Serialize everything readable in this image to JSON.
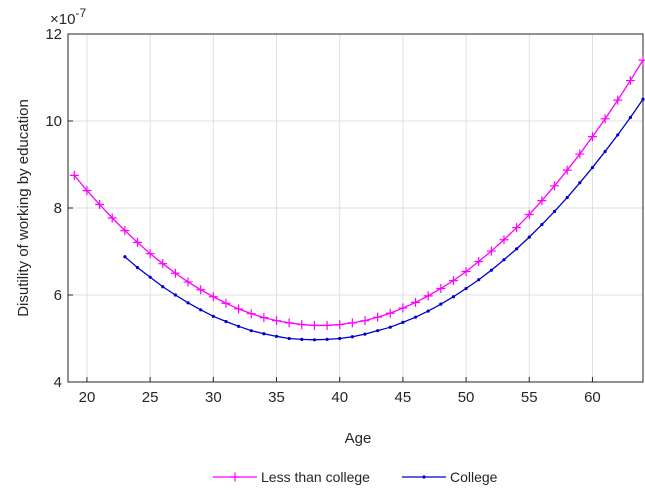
{
  "chart_data": {
    "type": "line",
    "x_label": "Age",
    "y_label": "Disutility of working by education",
    "y_multiplier": {
      "base": "×10",
      "exponent": "-7"
    },
    "xlim": [
      18.5,
      64
    ],
    "ylim": [
      4,
      12
    ],
    "xticks": [
      20,
      25,
      30,
      35,
      40,
      45,
      50,
      55,
      60
    ],
    "yticks": [
      4,
      6,
      8,
      10,
      12
    ],
    "grid": true,
    "legend": "bottom",
    "x": [
      19,
      20,
      21,
      22,
      23,
      24,
      25,
      26,
      27,
      28,
      29,
      30,
      31,
      32,
      33,
      34,
      35,
      36,
      37,
      38,
      39,
      40,
      41,
      42,
      43,
      44,
      45,
      46,
      47,
      48,
      49,
      50,
      51,
      52,
      53,
      54,
      55,
      56,
      57,
      58,
      59,
      60,
      61,
      62,
      63,
      64
    ],
    "series": [
      {
        "name": "Less than college",
        "color": "#ff00ff",
        "marker": "plus",
        "values": [
          8.75,
          8.4,
          8.08,
          7.77,
          7.48,
          7.21,
          6.95,
          6.72,
          6.5,
          6.3,
          6.12,
          5.96,
          5.81,
          5.68,
          5.57,
          5.48,
          5.41,
          5.36,
          5.32,
          5.3,
          5.3,
          5.32,
          5.36,
          5.41,
          5.49,
          5.58,
          5.7,
          5.83,
          5.98,
          6.15,
          6.33,
          6.54,
          6.77,
          7.01,
          7.27,
          7.55,
          7.85,
          8.17,
          8.51,
          8.87,
          9.24,
          9.64,
          10.05,
          10.48,
          10.93,
          11.4
        ]
      },
      {
        "name": "College",
        "color": "#0000cc",
        "marker": "dot",
        "values": [
          null,
          null,
          null,
          null,
          6.88,
          6.63,
          6.41,
          6.19,
          6.0,
          5.82,
          5.66,
          5.51,
          5.39,
          5.28,
          5.18,
          5.11,
          5.05,
          5.0,
          4.98,
          4.97,
          4.98,
          5.0,
          5.04,
          5.1,
          5.18,
          5.26,
          5.37,
          5.49,
          5.63,
          5.79,
          5.96,
          6.15,
          6.35,
          6.57,
          6.81,
          7.06,
          7.33,
          7.62,
          7.92,
          8.24,
          8.58,
          8.93,
          9.3,
          9.68,
          10.08,
          10.5
        ]
      }
    ]
  }
}
